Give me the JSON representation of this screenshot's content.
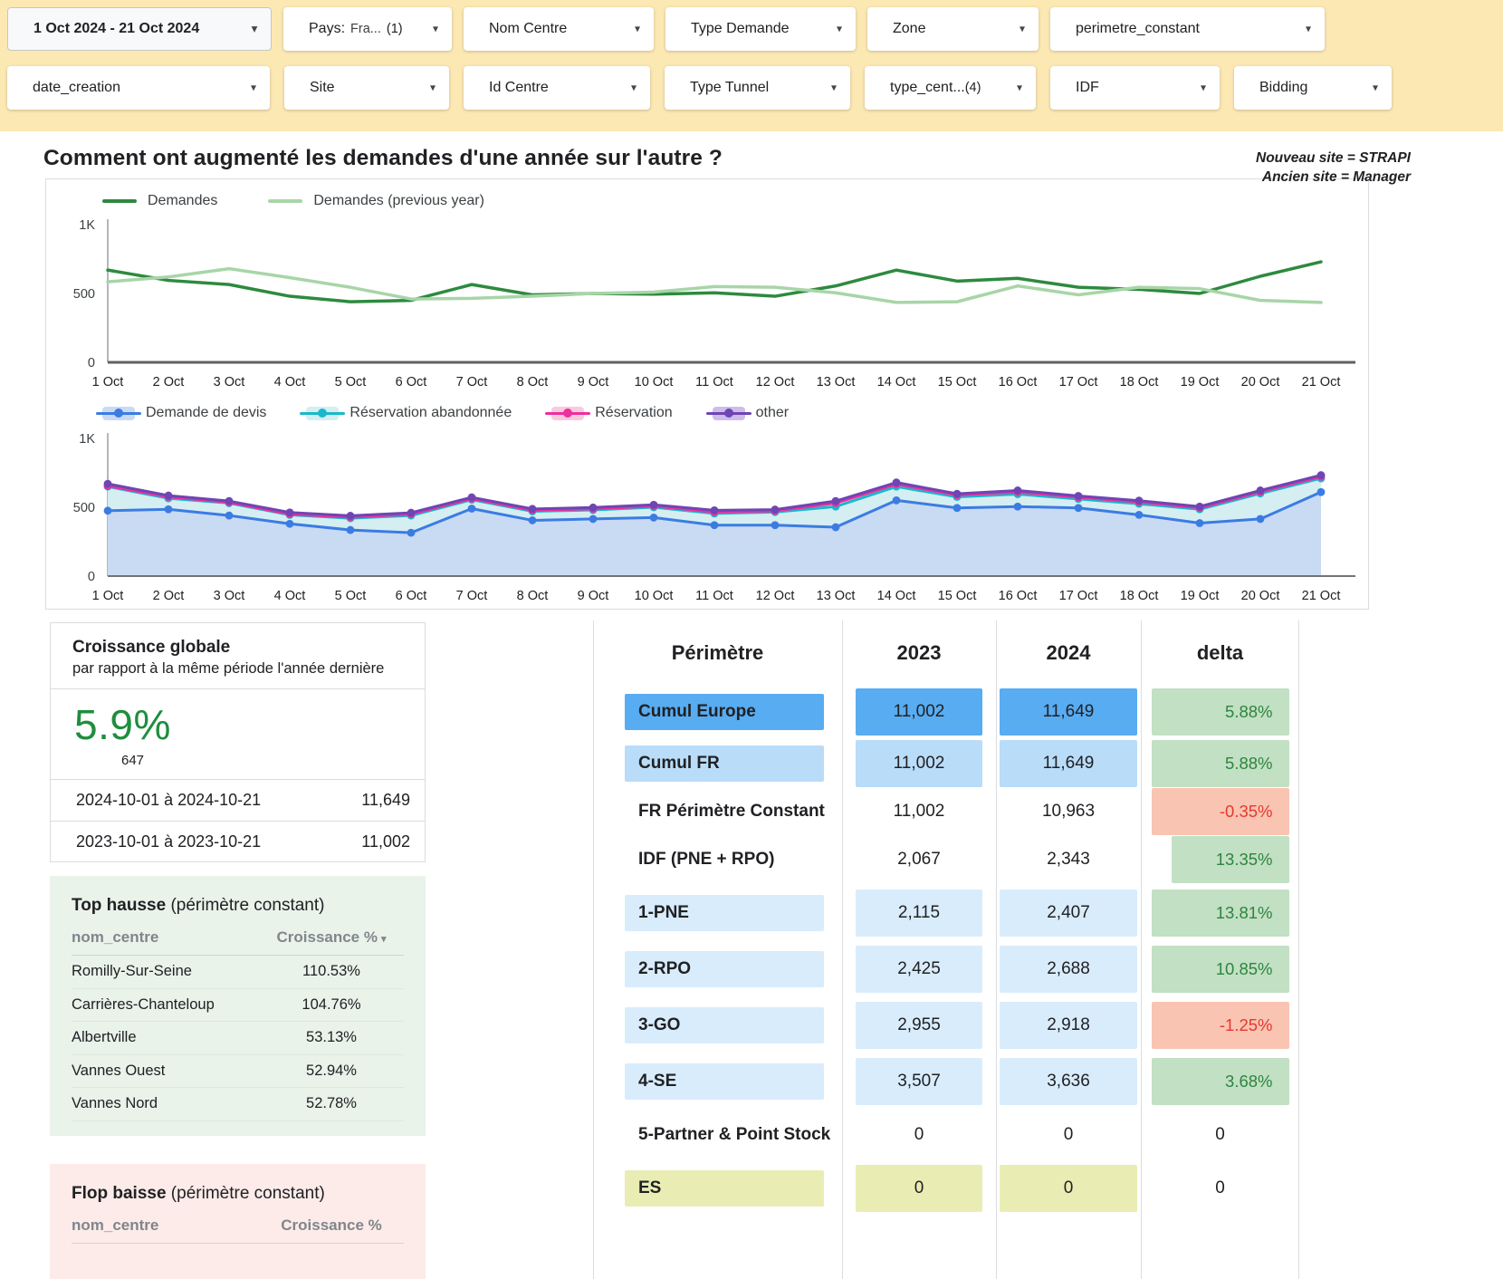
{
  "icons": {
    "caret": "▾",
    "sort_desc": "▾"
  },
  "colors": {
    "filter_bar_bg": "#fce8b2",
    "growth_green": "#1e8e3e",
    "delta_green_bg": "#c2e0c3",
    "delta_green_text": "#2e8540",
    "delta_red_bg": "#f9c5b2",
    "delta_red_text": "#e5392f",
    "row_europe_bg": "#58acf1",
    "row_fr_bg": "#b9dcf9",
    "row_zone_bg": "#d9ecfc",
    "row_es_bg": "#e9edb4",
    "hausse_bg": "#e9f3ea",
    "baisse_bg": "#fcebe8"
  },
  "filters": {
    "row1": [
      {
        "label": "1 Oct 2024 - 21 Oct 2024"
      },
      {
        "label": "Pays:",
        "value": "Fra...",
        "count": "(1)"
      },
      {
        "label": "Nom Centre"
      },
      {
        "label": "Type Demande"
      },
      {
        "label": "Zone"
      },
      {
        "label": "perimetre_constant"
      }
    ],
    "row2": [
      {
        "label": "date_creation"
      },
      {
        "label": "Site"
      },
      {
        "label": "Id Centre"
      },
      {
        "label": "Type Tunnel"
      },
      {
        "label": "type_cent...",
        "count": "(4)"
      },
      {
        "label": "IDF"
      },
      {
        "label": "Bidding"
      }
    ]
  },
  "title": "Comment ont augmenté les demandes d'une année sur l'autre ?",
  "note": {
    "line1": "Nouveau site = STRAPI",
    "line2": "Ancien site = Manager"
  },
  "chart_data": [
    {
      "type": "line",
      "legend_position": "top",
      "grid": false,
      "ylim": [
        0,
        1000
      ],
      "yticks": [
        {
          "v": 1000,
          "label": "1K"
        },
        {
          "v": 500,
          "label": "500"
        },
        {
          "v": 0,
          "label": "0"
        }
      ],
      "categories": [
        "1 Oct",
        "2 Oct",
        "3 Oct",
        "4 Oct",
        "5 Oct",
        "6 Oct",
        "7 Oct",
        "8 Oct",
        "9 Oct",
        "10 Oct",
        "11 Oct",
        "12 Oct",
        "13 Oct",
        "14 Oct",
        "15 Oct",
        "16 Oct",
        "17 Oct",
        "18 Oct",
        "19 Oct",
        "20 Oct",
        "21 Oct"
      ],
      "series": [
        {
          "name": "Demandes",
          "color": "#2d8a3e",
          "values": [
            670,
            595,
            565,
            480,
            440,
            450,
            565,
            490,
            500,
            495,
            505,
            480,
            555,
            670,
            590,
            610,
            545,
            530,
            500,
            625,
            730
          ]
        },
        {
          "name": "Demandes (previous year)",
          "color": "#a8d5a8",
          "values": [
            585,
            620,
            680,
            615,
            545,
            460,
            465,
            480,
            500,
            510,
            550,
            545,
            505,
            435,
            440,
            555,
            490,
            545,
            535,
            450,
            435
          ]
        }
      ]
    },
    {
      "type": "area",
      "stacked": true,
      "values_are_cumulative": true,
      "legend_position": "top",
      "grid": false,
      "ylim": [
        0,
        1000
      ],
      "yticks": [
        {
          "v": 1000,
          "label": "1K"
        },
        {
          "v": 500,
          "label": "500"
        },
        {
          "v": 0,
          "label": "0"
        }
      ],
      "categories": [
        "1 Oct",
        "2 Oct",
        "3 Oct",
        "4 Oct",
        "5 Oct",
        "6 Oct",
        "7 Oct",
        "8 Oct",
        "9 Oct",
        "10 Oct",
        "11 Oct",
        "12 Oct",
        "13 Oct",
        "14 Oct",
        "15 Oct",
        "16 Oct",
        "17 Oct",
        "18 Oct",
        "19 Oct",
        "20 Oct",
        "21 Oct"
      ],
      "series": [
        {
          "name": "Demande de devis",
          "color": "#3b7ce3",
          "fill": "#c9daf3",
          "values": [
            475,
            485,
            440,
            380,
            335,
            315,
            490,
            405,
            415,
            425,
            370,
            370,
            355,
            550,
            495,
            505,
            495,
            445,
            385,
            415,
            610
          ]
        },
        {
          "name": "Réservation abandonnée",
          "color": "#19b8cc",
          "fill": "#d4eef2",
          "values": [
            650,
            565,
            530,
            445,
            420,
            440,
            555,
            470,
            480,
            500,
            455,
            465,
            505,
            650,
            575,
            595,
            560,
            525,
            485,
            600,
            710
          ]
        },
        {
          "name": "Réservation",
          "color": "#ee2f9e",
          "fill": "#f8cadf",
          "values": [
            655,
            575,
            535,
            450,
            428,
            450,
            562,
            478,
            488,
            508,
            465,
            473,
            530,
            668,
            588,
            610,
            572,
            538,
            495,
            612,
            722
          ]
        },
        {
          "name": "other",
          "color": "#6e45b4",
          "fill": "#cfbcea",
          "values": [
            670,
            585,
            545,
            462,
            438,
            460,
            572,
            488,
            498,
            518,
            478,
            483,
            545,
            680,
            598,
            622,
            582,
            548,
            505,
            622,
            733
          ]
        }
      ]
    }
  ],
  "growth_card": {
    "title": "Croissance globale",
    "subtitle": "par rapport à la même période l'année dernière",
    "pct": "5.9%",
    "count": "647",
    "rows": [
      {
        "period": "2024-10-01 à 2024-10-21",
        "value": "11,649"
      },
      {
        "period": "2023-10-01 à 2023-10-21",
        "value": "11,002"
      }
    ]
  },
  "top_hausse": {
    "title": "Top hausse",
    "subtitle": " (périmètre constant)",
    "col1": "nom_centre",
    "col2": "Croissance %",
    "rows": [
      {
        "name": "Romilly-Sur-Seine",
        "value": "110.53%"
      },
      {
        "name": "Carrières-Chanteloup",
        "value": "104.76%"
      },
      {
        "name": "Albertville",
        "value": "53.13%"
      },
      {
        "name": "Vannes Ouest",
        "value": "52.94%"
      },
      {
        "name": "Vannes Nord",
        "value": "52.78%"
      }
    ]
  },
  "flop_baisse": {
    "title": "Flop baisse",
    "subtitle": " (périmètre constant)",
    "col1": "nom_centre",
    "col2": "Croissance %"
  },
  "table": {
    "headers": {
      "perimetre": "Périmètre",
      "y2023": "2023",
      "y2024": "2024",
      "delta": "delta"
    },
    "rows": [
      {
        "label": "Cumul Europe",
        "y2023": "11,002",
        "y2024": "11,649",
        "delta": "5.88%"
      },
      {
        "label": "Cumul FR",
        "y2023": "11,002",
        "y2024": "11,649",
        "delta": "5.88%"
      },
      {
        "label": "FR Périmètre Constant",
        "y2023": "11,002",
        "y2024": "10,963",
        "delta": "-0.35%"
      },
      {
        "label": "IDF (PNE + RPO)",
        "y2023": "2,067",
        "y2024": "2,343",
        "delta": "13.35%"
      },
      {
        "label": "1-PNE",
        "y2023": "2,115",
        "y2024": "2,407",
        "delta": "13.81%"
      },
      {
        "label": "2-RPO",
        "y2023": "2,425",
        "y2024": "2,688",
        "delta": "10.85%"
      },
      {
        "label": "3-GO",
        "y2023": "2,955",
        "y2024": "2,918",
        "delta": "-1.25%"
      },
      {
        "label": "4-SE",
        "y2023": "3,507",
        "y2024": "3,636",
        "delta": "3.68%"
      },
      {
        "label": "5-Partner & Point Stock",
        "y2023": "0",
        "y2024": "0",
        "delta": "0"
      },
      {
        "label": "ES",
        "y2023": "0",
        "y2024": "0",
        "delta": "0"
      }
    ]
  }
}
